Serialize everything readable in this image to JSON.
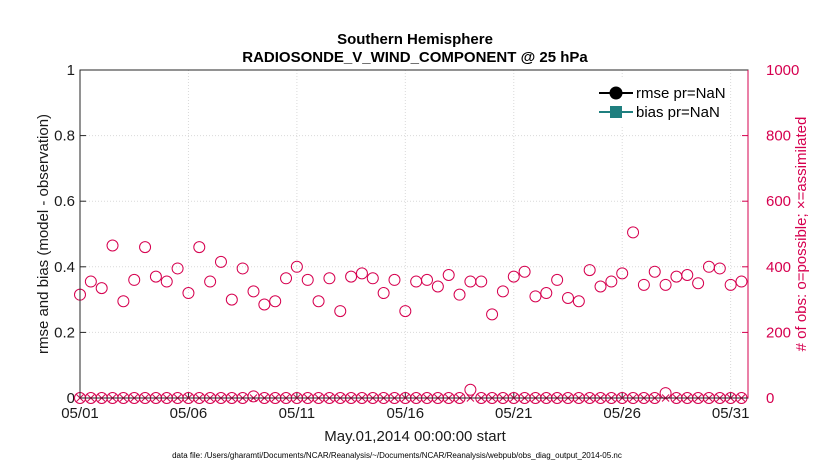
{
  "chart_data": {
    "type": "scatter",
    "title": [
      "Southern Hemisphere",
      "RADIOSONDE_V_WIND_COMPONENT @ 25 hPa"
    ],
    "xlabel": "May.01,2014 00:00:00 start",
    "ylabel_left": "rmse and bias (model - observation)",
    "ylabel_right": "# of obs: o=possible; ×=assimilated",
    "footer": "data file: /Users/gharamti/Documents/NCAR/Reanalysis/~/Documents/NCAR/Reanalysis/webpub/obs_diag_output_2014-05.nc",
    "xlim": [
      0,
      30.8
    ],
    "ylim_left": [
      0,
      1
    ],
    "ylim_right": [
      0,
      1000
    ],
    "x_ticks": [
      0,
      5,
      10,
      15,
      20,
      25,
      30
    ],
    "x_tick_labels": [
      "05/01",
      "05/06",
      "05/11",
      "05/16",
      "05/21",
      "05/26",
      "05/31"
    ],
    "y_ticks_left": [
      0,
      0.2,
      0.4,
      0.6,
      0.8,
      1
    ],
    "y_tick_labels_left": [
      "0",
      "0.2",
      "0.4",
      "0.6",
      "0.8",
      "1"
    ],
    "y_ticks_right": [
      0,
      200,
      400,
      600,
      800,
      1000
    ],
    "y_tick_labels_right": [
      "0",
      "200",
      "400",
      "600",
      "800",
      "1000"
    ],
    "legend": [
      {
        "label": "rmse pr=NaN",
        "color": "#000000",
        "marker": "circle"
      },
      {
        "label": "bias pr=NaN",
        "color": "#1f7f7f",
        "marker": "square"
      }
    ],
    "series": [
      {
        "name": "possible",
        "axis": "right",
        "marker": "open-circle",
        "color": "#d6004f",
        "x": [
          0,
          0.5,
          1,
          1.5,
          2,
          2.5,
          3,
          3.5,
          4,
          4.5,
          5,
          5.5,
          6,
          6.5,
          7,
          7.5,
          8,
          8.5,
          9,
          9.5,
          10,
          10.5,
          11,
          11.5,
          12,
          12.5,
          13,
          13.5,
          14,
          14.5,
          15,
          15.5,
          16,
          16.5,
          17,
          17.5,
          18,
          18.5,
          19,
          19.5,
          20,
          20.5,
          21,
          21.5,
          22,
          22.5,
          23,
          23.5,
          24,
          24.5,
          25,
          25.5,
          26,
          26.5,
          27,
          27.5,
          28,
          28.5,
          29,
          29.5,
          30,
          30.5
        ],
        "values": [
          315,
          355,
          335,
          465,
          295,
          360,
          460,
          370,
          355,
          395,
          320,
          460,
          355,
          415,
          300,
          395,
          325,
          285,
          295,
          365,
          400,
          360,
          295,
          365,
          265,
          370,
          380,
          365,
          320,
          360,
          265,
          355,
          360,
          340,
          375,
          315,
          355,
          355,
          255,
          325,
          370,
          385,
          310,
          320,
          360,
          305,
          295,
          390,
          340,
          355,
          380,
          505,
          345,
          385,
          345,
          370,
          375,
          350,
          400,
          395,
          345,
          355
        ]
      },
      {
        "name": "assimilated",
        "axis": "right",
        "marker": "x",
        "color": "#d6004f",
        "x": [
          0,
          0.5,
          1,
          1.5,
          2,
          2.5,
          3,
          3.5,
          4,
          4.5,
          5,
          5.5,
          6,
          6.5,
          7,
          7.5,
          8,
          8.5,
          9,
          9.5,
          10,
          10.5,
          11,
          11.5,
          12,
          12.5,
          13,
          13.5,
          14,
          14.5,
          15,
          15.5,
          16,
          16.5,
          17,
          17.5,
          18,
          18.5,
          19,
          19.5,
          20,
          20.5,
          21,
          21.5,
          22,
          22.5,
          23,
          23.5,
          24,
          24.5,
          25,
          25.5,
          26,
          26.5,
          27,
          27.5,
          28,
          28.5,
          29,
          29.5,
          30,
          30.5
        ],
        "values": [
          0,
          0,
          0,
          0,
          0,
          0,
          0,
          0,
          0,
          0,
          0,
          0,
          0,
          0,
          0,
          0,
          0,
          0,
          0,
          0,
          0,
          0,
          0,
          0,
          0,
          0,
          0,
          0,
          0,
          0,
          0,
          0,
          0,
          0,
          0,
          0,
          0,
          0,
          0,
          0,
          0,
          0,
          0,
          0,
          0,
          0,
          0,
          0,
          0,
          0,
          0,
          0,
          0,
          0,
          0,
          0,
          0,
          0,
          0,
          0,
          0,
          0
        ]
      },
      {
        "name": "possible (near-zero)",
        "axis": "right",
        "marker": "open-circle",
        "color": "#d6004f",
        "x": [
          0,
          0.5,
          1,
          1.5,
          2,
          2.5,
          3,
          3.5,
          4,
          4.5,
          5,
          5.5,
          6,
          6.5,
          7,
          7.5,
          8,
          8.5,
          9,
          9.5,
          10,
          10.5,
          11,
          11.5,
          12,
          12.5,
          13,
          13.5,
          14,
          14.5,
          15,
          15.5,
          16,
          16.5,
          17,
          17.5,
          18,
          18.5,
          19,
          19.5,
          20,
          20.5,
          21,
          21.5,
          22,
          22.5,
          23,
          23.5,
          24,
          24.5,
          25,
          25.5,
          26,
          26.5,
          27,
          27.5,
          28,
          28.5,
          29,
          29.5,
          30,
          30.5
        ],
        "values": [
          0,
          0,
          0,
          0,
          0,
          0,
          0,
          0,
          0,
          0,
          0,
          0,
          0,
          0,
          0,
          0,
          5,
          0,
          0,
          0,
          0,
          0,
          0,
          0,
          0,
          0,
          0,
          0,
          0,
          0,
          0,
          0,
          0,
          0,
          0,
          0,
          25,
          0,
          0,
          0,
          0,
          0,
          0,
          0,
          0,
          0,
          0,
          0,
          0,
          0,
          0,
          0,
          0,
          0,
          15,
          0,
          0,
          0,
          0,
          0,
          0,
          0
        ]
      }
    ]
  }
}
